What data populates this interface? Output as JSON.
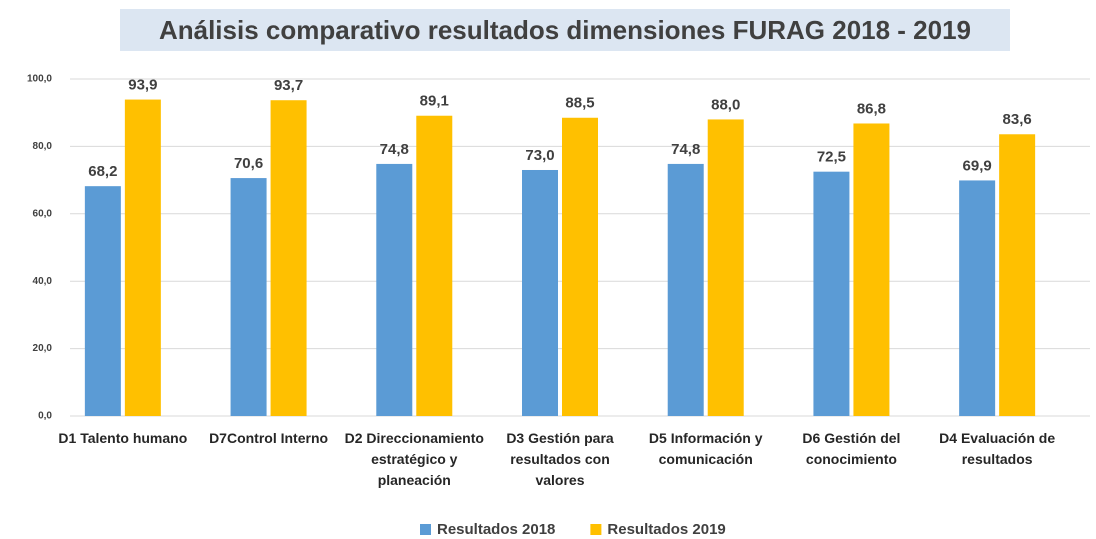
{
  "chart_data": {
    "type": "bar",
    "title": "Análisis comparativo resultados dimensiones FURAG 2018 - 2019",
    "categories": [
      "D1 Talento humano",
      "D7Control Interno",
      "D2 Direccionamiento estratégico y planeación",
      "D3 Gestión para resultados con valores",
      "D5 Información y comunicación",
      "D6 Gestión del conocimiento",
      "D4 Evaluación de resultados"
    ],
    "series": [
      {
        "name": "Resultados 2018",
        "color": "#5b9bd5",
        "values": [
          68.2,
          70.6,
          74.8,
          73.0,
          74.8,
          72.5,
          69.9
        ],
        "value_labels": [
          "68,2",
          "70,6",
          "74,8",
          "73,0",
          "74,8",
          "72,5",
          "69,9"
        ]
      },
      {
        "name": "Resultados 2019",
        "color": "#ffc000",
        "values": [
          93.9,
          93.7,
          89.1,
          88.5,
          88.0,
          86.8,
          83.6
        ],
        "value_labels": [
          "93,9",
          "93,7",
          "89,1",
          "88,5",
          "88,0",
          "86,8",
          "83,6"
        ]
      }
    ],
    "ylim": [
      0,
      100
    ],
    "yticks": [
      {
        "value": 0,
        "label": "0,0"
      },
      {
        "value": 20,
        "label": "20,0"
      },
      {
        "value": 40,
        "label": "40,0"
      },
      {
        "value": 60,
        "label": "60,0"
      },
      {
        "value": 80,
        "label": "80,0"
      },
      {
        "value": 100,
        "label": "100,0"
      }
    ],
    "grid": true,
    "legend": "bottom"
  }
}
